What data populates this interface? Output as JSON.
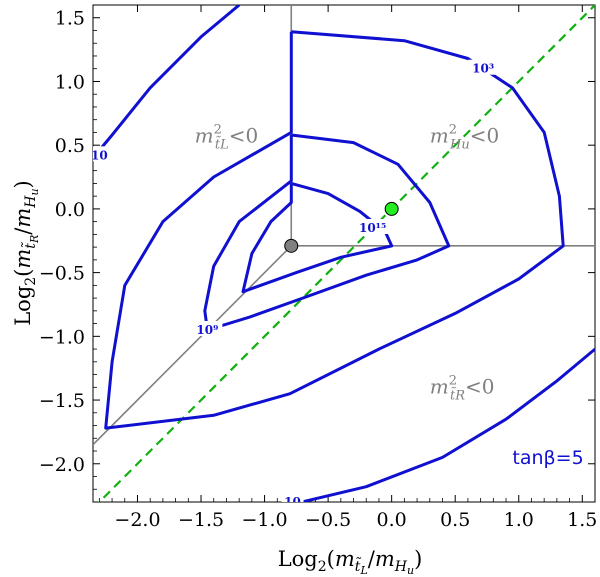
{
  "chart_data": {
    "type": "contour",
    "xlabel": "Log2(m_tL/m_Hu)",
    "ylabel": "Log2(m_tR/m_Hu)",
    "xlim": [
      -2.35,
      1.6
    ],
    "ylim": [
      -2.3,
      1.6
    ],
    "x_ticks": [
      -2.0,
      -1.5,
      -1.0,
      -0.5,
      0.0,
      0.5,
      1.0,
      1.5
    ],
    "y_ticks": [
      -2.0,
      -1.5,
      -1.0,
      -0.5,
      0.0,
      0.5,
      1.0,
      1.5
    ],
    "x_tick_labels": [
      "−2.0",
      "−1.5",
      "−1.0",
      "−0.5",
      "0.0",
      "0.5",
      "1.0",
      "1.5"
    ],
    "y_tick_labels": [
      "−2.0",
      "−1.5",
      "−1.0",
      "−0.5",
      "0.0",
      "0.5",
      "1.0",
      "1.5"
    ],
    "colors": {
      "contour": "#1010d0",
      "reference": "#808080",
      "diagonal": "#10b010",
      "green_point": "#22ee22",
      "gray_point": "#808080"
    },
    "reference_point": {
      "x": -0.79,
      "y": -0.29
    },
    "marked_point": {
      "x": 0.0,
      "y": 0.0
    },
    "diagonal_line": {
      "from": [
        -2.35,
        -2.35
      ],
      "to": [
        1.6,
        1.6
      ]
    },
    "contours": [
      {
        "name": "1e3",
        "points": [
          [
            -0.79,
            1.39
          ],
          [
            0.1,
            1.32
          ],
          [
            0.6,
            1.18
          ],
          [
            0.95,
            0.95
          ],
          [
            1.2,
            0.6
          ],
          [
            1.32,
            0.1
          ],
          [
            1.35,
            -0.29
          ],
          [
            1.0,
            -0.55
          ],
          [
            0.5,
            -0.82
          ],
          [
            -0.1,
            -1.1
          ],
          [
            -0.8,
            -1.45
          ],
          [
            -1.4,
            -1.62
          ],
          [
            -2.25,
            -1.72
          ],
          [
            -2.2,
            -1.2
          ],
          [
            -2.1,
            -0.6
          ],
          [
            -1.8,
            -0.1
          ],
          [
            -1.4,
            0.25
          ],
          [
            -0.79,
            0.6
          ],
          [
            -0.79,
            1.39
          ]
        ]
      },
      {
        "name": "1e9",
        "points": [
          [
            -0.79,
            0.58
          ],
          [
            -0.3,
            0.52
          ],
          [
            0.05,
            0.35
          ],
          [
            0.3,
            0.05
          ],
          [
            0.45,
            -0.29
          ],
          [
            0.2,
            -0.4
          ],
          [
            -0.2,
            -0.52
          ],
          [
            -0.7,
            -0.7
          ],
          [
            -1.12,
            -0.85
          ],
          [
            -1.45,
            -0.95
          ],
          [
            -1.47,
            -0.8
          ],
          [
            -1.4,
            -0.45
          ],
          [
            -1.2,
            -0.1
          ],
          [
            -0.79,
            0.22
          ],
          [
            -0.79,
            0.58
          ]
        ]
      },
      {
        "name": "1e15",
        "points": [
          [
            -0.79,
            0.2
          ],
          [
            -0.5,
            0.12
          ],
          [
            -0.25,
            -0.02
          ],
          [
            -0.05,
            -0.18
          ],
          [
            0.0,
            -0.29
          ],
          [
            -0.4,
            -0.38
          ],
          [
            -0.75,
            -0.5
          ],
          [
            -1.17,
            -0.65
          ],
          [
            -1.1,
            -0.35
          ],
          [
            -0.95,
            -0.1
          ],
          [
            -0.79,
            0.05
          ],
          [
            -0.79,
            0.2
          ]
        ]
      },
      {
        "name": "1e0 upper",
        "points": [
          [
            -2.35,
            0.4
          ],
          [
            -2.2,
            0.58
          ],
          [
            -1.9,
            0.95
          ],
          [
            -1.5,
            1.35
          ],
          [
            -1.2,
            1.6
          ]
        ]
      },
      {
        "name": "1e0 lower",
        "points": [
          [
            -0.79,
            -2.32
          ],
          [
            -0.2,
            -2.18
          ],
          [
            0.4,
            -1.95
          ],
          [
            0.9,
            -1.65
          ],
          [
            1.3,
            -1.35
          ],
          [
            1.6,
            -1.1
          ]
        ]
      }
    ],
    "contour_labels": [
      {
        "text": "10³",
        "x": 0.72,
        "y": 1.1
      },
      {
        "text": "10⁹",
        "x": -1.45,
        "y": -0.95
      },
      {
        "text": "10¹⁵",
        "x": -0.15,
        "y": -0.15
      },
      {
        "text": "10",
        "x": -2.3,
        "y": 0.42
      },
      {
        "text": "10",
        "x": -0.78,
        "y": -2.3
      }
    ],
    "annotations": [
      {
        "text": "m²_{t̃L}<0",
        "x": -1.55,
        "y": 0.52
      },
      {
        "text": "m²_{Hu}<0",
        "x": 0.3,
        "y": 0.52
      },
      {
        "text": "m²_{t̃R}<0",
        "x": 0.3,
        "y": -1.45
      },
      {
        "text": "tanβ=5",
        "x": 0.95,
        "y": -2.0
      }
    ]
  }
}
